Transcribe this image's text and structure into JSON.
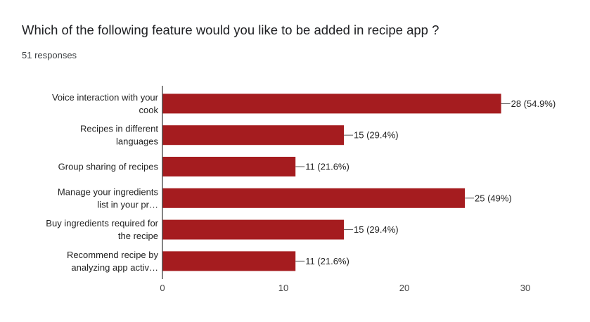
{
  "question": "Which of the following feature would you like to be added in recipe app ?",
  "responses": "51 responses",
  "chart_data": {
    "type": "bar",
    "orientation": "horizontal",
    "categories": [
      [
        "Voice interaction with your",
        "cook"
      ],
      [
        "Recipes in different",
        "languages"
      ],
      [
        "Group sharing of recipes"
      ],
      [
        "Manage your ingredients",
        "list in your pr…"
      ],
      [
        "Buy ingredients required for",
        "the recipe"
      ],
      [
        "Recommend recipe by",
        "analyzing app activ…"
      ]
    ],
    "values": [
      28,
      15,
      11,
      25,
      15,
      11
    ],
    "data_labels": [
      "28 (54.9%)",
      "15 (29.4%)",
      "11 (21.6%)",
      "25 (49%)",
      "15 (29.4%)",
      "11 (21.6%)"
    ],
    "xlim": [
      0,
      30
    ],
    "xticks": [
      "0",
      "10",
      "20",
      "30"
    ],
    "grid": false,
    "bar_color": "#a51c1f"
  }
}
